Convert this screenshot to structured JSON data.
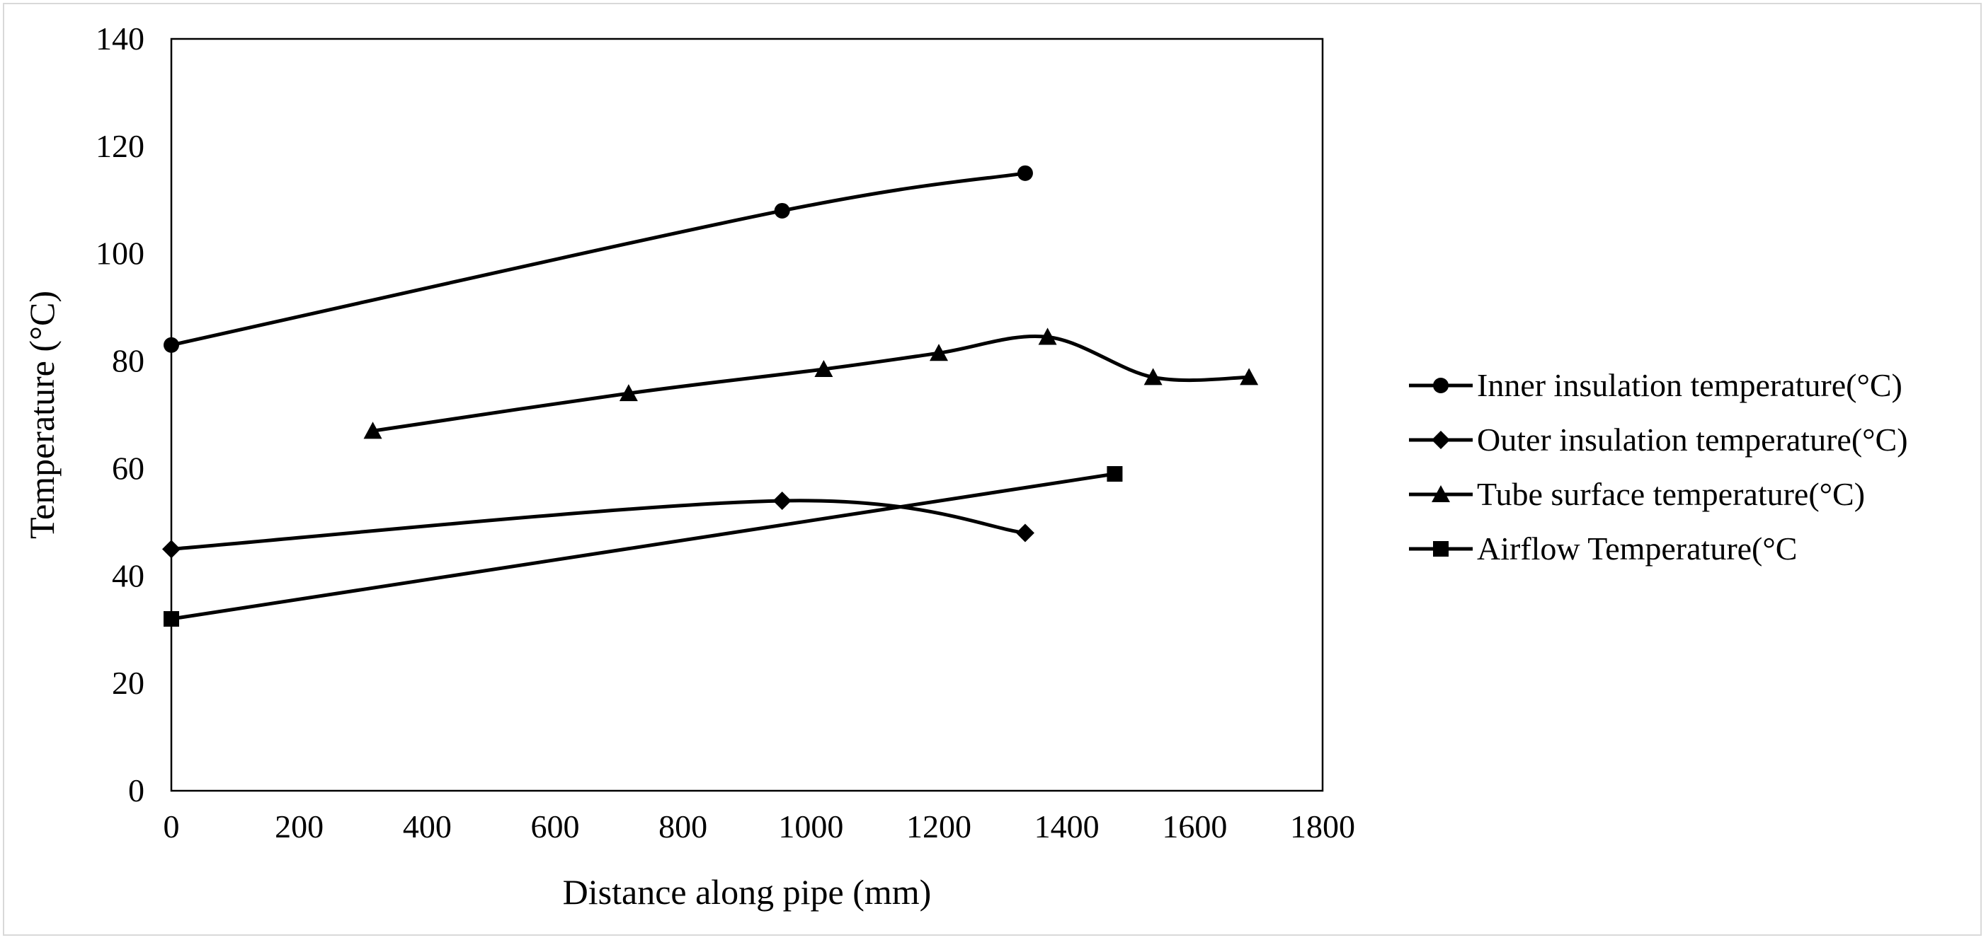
{
  "chart_data": {
    "type": "line",
    "title": "",
    "xlabel": "Distance along pipe (mm)",
    "ylabel": "Temperature (°C)",
    "xlim": [
      0,
      1800
    ],
    "ylim": [
      0,
      140
    ],
    "xticks": [
      0,
      200,
      400,
      600,
      800,
      1000,
      1200,
      1400,
      1600,
      1800
    ],
    "yticks": [
      0,
      20,
      40,
      60,
      80,
      100,
      120,
      140
    ],
    "grid": false,
    "legend_position": "right",
    "series": [
      {
        "name": "Inner insulation temperature(°C)",
        "marker": "circle",
        "x": [
          0,
          955,
          1335
        ],
        "y": [
          83,
          108,
          115
        ]
      },
      {
        "name": "Outer insulation temperature(°C)",
        "marker": "diamond",
        "x": [
          0,
          955,
          1335
        ],
        "y": [
          45,
          54,
          48
        ]
      },
      {
        "name": "Tube surface temperature(°C)",
        "marker": "triangle",
        "x": [
          315,
          715,
          1020,
          1200,
          1370,
          1535,
          1685
        ],
        "y": [
          67,
          74,
          78.5,
          81.5,
          84.5,
          77,
          77
        ]
      },
      {
        "name": "Airflow Temperature(°C",
        "marker": "square",
        "x": [
          0,
          1475
        ],
        "y": [
          32,
          59
        ]
      }
    ]
  },
  "colors": {
    "line": "#000000",
    "frame": "#d9d9d9"
  }
}
